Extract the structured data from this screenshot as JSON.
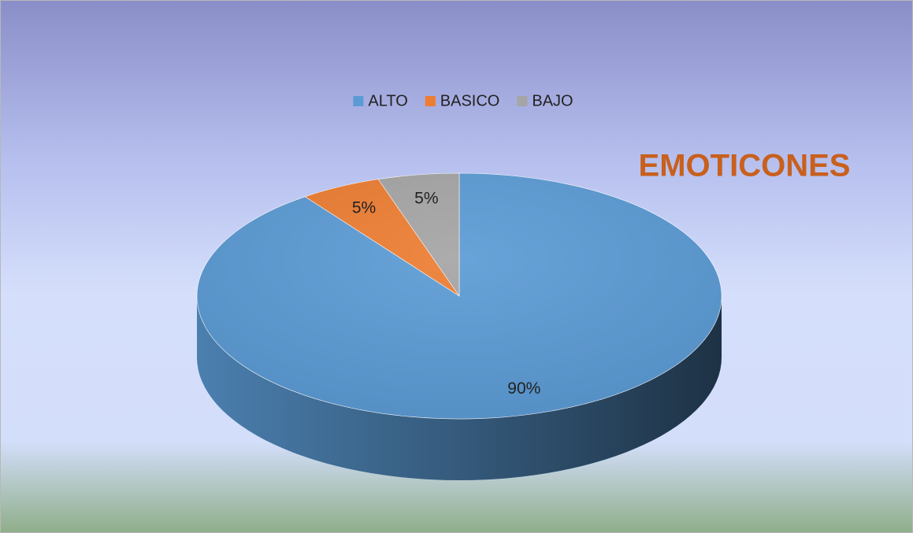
{
  "chart_data": {
    "type": "pie3d",
    "title": "EMOTICONES",
    "categories": [
      "ALTO",
      "BASICO",
      "BAJO"
    ],
    "values": [
      90,
      5,
      5
    ],
    "value_labels": [
      "90%",
      "5%",
      "5%"
    ],
    "colors": [
      "#5b9bd5",
      "#ed7d31",
      "#a5a5a5"
    ],
    "legend": "top"
  }
}
